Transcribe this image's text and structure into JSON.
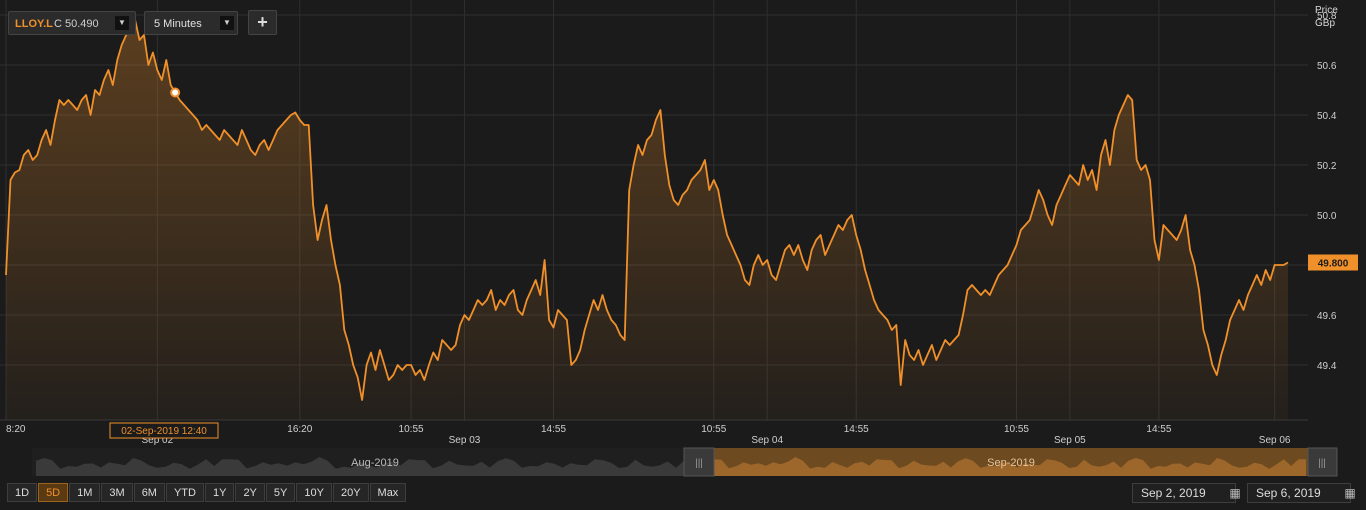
{
  "header": {
    "symbol": "LLOY.L",
    "close_label": "C 50.490",
    "interval": "5 Minutes",
    "add_label": "+"
  },
  "axis": {
    "price_label": "Price",
    "currency_label": "GBp",
    "current_value_label": "49.800"
  },
  "crosshair_label": "02-Sep-2019 12:40",
  "navigator": {
    "left_label": "Aug-2019",
    "right_label": "Sep-2019"
  },
  "range_buttons": [
    "1D",
    "5D",
    "1M",
    "3M",
    "6M",
    "YTD",
    "1Y",
    "2Y",
    "5Y",
    "10Y",
    "20Y",
    "Max"
  ],
  "active_range": "5D",
  "date_from": "Sep 2, 2019",
  "date_to": "Sep 6, 2019",
  "colors": {
    "line": "#f0902a",
    "background": "#1b1b1b",
    "grid": "#2f2f2f"
  },
  "chart_data": {
    "type": "line",
    "title": "",
    "xlabel": "",
    "ylabel": "Price GBp",
    "ylim": [
      49.18,
      50.86
    ],
    "yticks": [
      50.8,
      50.6,
      50.4,
      50.2,
      50.0,
      49.8,
      49.6,
      49.4
    ],
    "x_tick_labels": [
      {
        "label": "8:20",
        "i": 0
      },
      {
        "label": "Sep 02",
        "i": 34
      },
      {
        "label": "16:20",
        "i": 66
      },
      {
        "label": "10:55",
        "i": 91
      },
      {
        "label": "Sep 03",
        "i": 103
      },
      {
        "label": "14:55",
        "i": 123
      },
      {
        "label": "10:55",
        "i": 159
      },
      {
        "label": "Sep 04",
        "i": 171
      },
      {
        "label": "14:55",
        "i": 191
      },
      {
        "label": "10:55",
        "i": 227
      },
      {
        "label": "Sep 05",
        "i": 239
      },
      {
        "label": "14:55",
        "i": 259
      },
      {
        "label": "Sep 06",
        "i": 285
      }
    ],
    "marker_index": 38,
    "marker_value": 50.49,
    "series": [
      {
        "values": [
          49.76,
          50.14,
          50.17,
          50.18,
          50.24,
          50.26,
          50.22,
          50.24,
          50.3,
          50.34,
          50.28,
          50.38,
          50.46,
          50.44,
          50.46,
          50.44,
          50.42,
          50.46,
          50.48,
          50.4,
          50.5,
          50.48,
          50.54,
          50.58,
          50.52,
          50.62,
          50.68,
          50.72,
          50.74,
          50.78,
          50.7,
          50.72,
          50.6,
          50.65,
          50.58,
          50.54,
          50.62,
          50.52,
          50.49,
          50.46,
          50.44,
          50.42,
          50.4,
          50.38,
          50.34,
          50.36,
          50.34,
          50.32,
          50.3,
          50.34,
          50.32,
          50.3,
          50.28,
          50.34,
          50.3,
          50.26,
          50.24,
          50.28,
          50.3,
          50.26,
          50.3,
          50.34,
          50.36,
          50.38,
          50.4,
          50.41,
          50.38,
          50.36,
          50.36,
          50.04,
          49.9,
          49.98,
          50.04,
          49.9,
          49.8,
          49.72,
          49.54,
          49.48,
          49.4,
          49.35,
          49.26,
          49.4,
          49.45,
          49.38,
          49.46,
          49.4,
          49.34,
          49.36,
          49.4,
          49.38,
          49.4,
          49.4,
          49.36,
          49.38,
          49.34,
          49.4,
          49.45,
          49.42,
          49.5,
          49.48,
          49.46,
          49.48,
          49.56,
          49.6,
          49.58,
          49.62,
          49.66,
          49.64,
          49.66,
          49.7,
          49.62,
          49.66,
          49.64,
          49.68,
          49.7,
          49.62,
          49.6,
          49.66,
          49.7,
          49.74,
          49.68,
          49.82,
          49.58,
          49.55,
          49.62,
          49.6,
          49.58,
          49.4,
          49.42,
          49.46,
          49.54,
          49.6,
          49.66,
          49.62,
          49.68,
          49.62,
          49.58,
          49.56,
          49.52,
          49.5,
          50.1,
          50.2,
          50.28,
          50.24,
          50.3,
          50.32,
          50.38,
          50.42,
          50.24,
          50.12,
          50.06,
          50.04,
          50.08,
          50.1,
          50.14,
          50.16,
          50.18,
          50.22,
          50.1,
          50.14,
          50.1,
          50.0,
          49.92,
          49.88,
          49.84,
          49.8,
          49.74,
          49.72,
          49.8,
          49.84,
          49.8,
          49.82,
          49.76,
          49.74,
          49.8,
          49.86,
          49.88,
          49.84,
          49.88,
          49.82,
          49.78,
          49.86,
          49.9,
          49.92,
          49.84,
          49.88,
          49.92,
          49.96,
          49.94,
          49.98,
          50.0,
          49.92,
          49.86,
          49.78,
          49.72,
          49.66,
          49.62,
          49.6,
          49.58,
          49.54,
          49.56,
          49.32,
          49.5,
          49.44,
          49.42,
          49.46,
          49.4,
          49.44,
          49.48,
          49.42,
          49.46,
          49.5,
          49.48,
          49.5,
          49.52,
          49.6,
          49.7,
          49.72,
          49.7,
          49.68,
          49.7,
          49.68,
          49.72,
          49.76,
          49.78,
          49.8,
          49.84,
          49.88,
          49.94,
          49.96,
          49.98,
          50.04,
          50.1,
          50.06,
          50.0,
          49.96,
          50.04,
          50.08,
          50.12,
          50.16,
          50.14,
          50.12,
          50.2,
          50.14,
          50.18,
          50.1,
          50.24,
          50.3,
          50.2,
          50.34,
          50.4,
          50.44,
          50.48,
          50.46,
          50.22,
          50.18,
          50.2,
          50.14,
          49.9,
          49.82,
          49.96,
          49.94,
          49.92,
          49.9,
          49.94,
          50.0,
          49.86,
          49.8,
          49.7,
          49.54,
          49.48,
          49.4,
          49.36,
          49.44,
          49.5,
          49.58,
          49.62,
          49.66,
          49.62,
          49.68,
          49.72,
          49.76,
          49.72,
          49.78,
          49.74,
          49.8,
          49.8,
          49.8,
          49.81
        ]
      }
    ]
  }
}
